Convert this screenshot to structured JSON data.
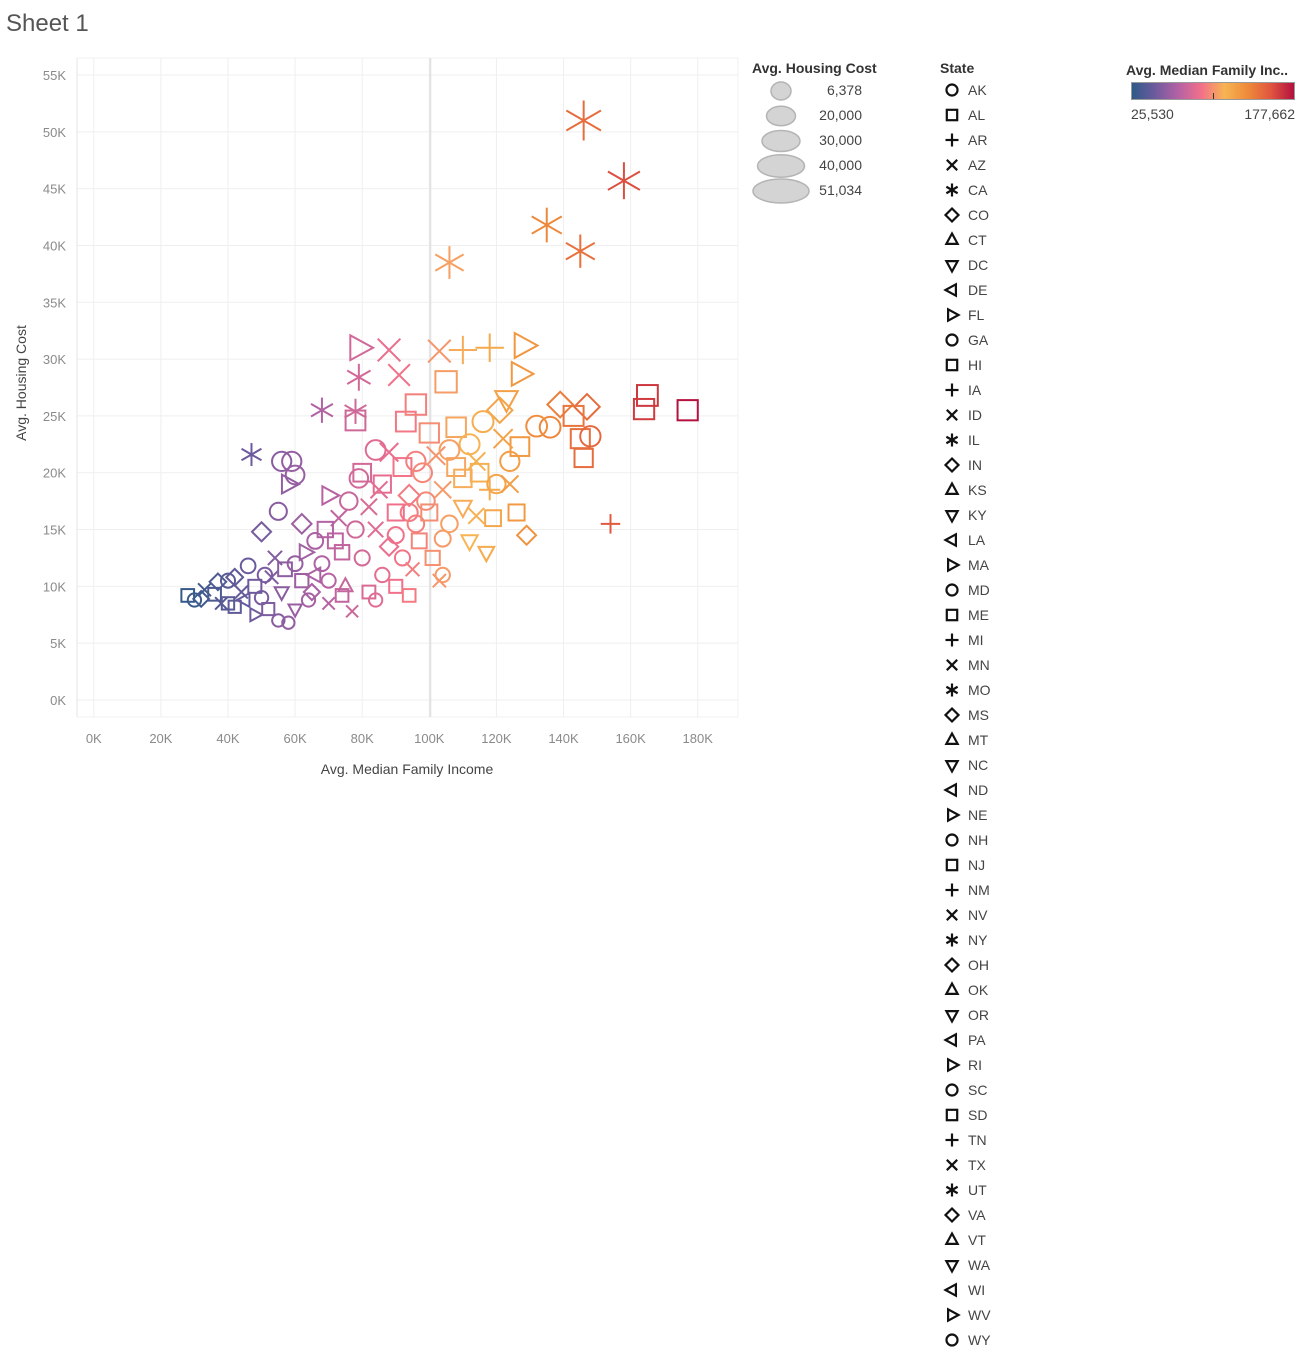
{
  "sheet": {
    "title": "Sheet 1"
  },
  "chart_data": {
    "type": "scatter",
    "xlabel": "Avg. Median Family Income",
    "ylabel": "Avg. Housing Cost",
    "xlim": [
      -5000,
      192000
    ],
    "ylim": [
      -1500,
      56500
    ],
    "x_ticks": [
      0,
      20000,
      40000,
      60000,
      80000,
      100000,
      120000,
      140000,
      160000,
      180000
    ],
    "x_tick_labels": [
      "0K",
      "20K",
      "40K",
      "60K",
      "80K",
      "100K",
      "120K",
      "140K",
      "160K",
      "180K"
    ],
    "y_ticks": [
      0,
      5000,
      10000,
      15000,
      20000,
      25000,
      30000,
      35000,
      40000,
      45000,
      50000,
      55000
    ],
    "y_tick_labels": [
      "0K",
      "5K",
      "10K",
      "15K",
      "20K",
      "25K",
      "30K",
      "35K",
      "40K",
      "45K",
      "50K",
      "55K"
    ],
    "grid": true,
    "color_scale": {
      "title": "Avg. Median Family Inc..",
      "min_label": "25,530",
      "max_label": "177,662",
      "min": 25530,
      "max": 177662,
      "stops": [
        "#2e5a87",
        "#6e5a9e",
        "#b462a4",
        "#f2708a",
        "#f7b453",
        "#ee8a3a",
        "#e0553f",
        "#b3103f"
      ]
    },
    "size_legend": {
      "title": "Avg. Housing Cost",
      "values": [
        "6,378",
        "20,000",
        "30,000",
        "40,000",
        "51,034"
      ]
    },
    "shape_legend": {
      "title": "State",
      "items": [
        {
          "state": "AK",
          "shape": "circle"
        },
        {
          "state": "AL",
          "shape": "square"
        },
        {
          "state": "AR",
          "shape": "plus"
        },
        {
          "state": "AZ",
          "shape": "cross"
        },
        {
          "state": "CA",
          "shape": "asterisk"
        },
        {
          "state": "CO",
          "shape": "diamond"
        },
        {
          "state": "CT",
          "shape": "triangle-up"
        },
        {
          "state": "DC",
          "shape": "triangle-down"
        },
        {
          "state": "DE",
          "shape": "triangle-left"
        },
        {
          "state": "FL",
          "shape": "triangle-right"
        },
        {
          "state": "GA",
          "shape": "circle"
        },
        {
          "state": "HI",
          "shape": "square"
        },
        {
          "state": "IA",
          "shape": "plus"
        },
        {
          "state": "ID",
          "shape": "cross"
        },
        {
          "state": "IL",
          "shape": "asterisk"
        },
        {
          "state": "IN",
          "shape": "diamond"
        },
        {
          "state": "KS",
          "shape": "triangle-up"
        },
        {
          "state": "KY",
          "shape": "triangle-down"
        },
        {
          "state": "LA",
          "shape": "triangle-left"
        },
        {
          "state": "MA",
          "shape": "triangle-right"
        },
        {
          "state": "MD",
          "shape": "circle"
        },
        {
          "state": "ME",
          "shape": "square"
        },
        {
          "state": "MI",
          "shape": "plus"
        },
        {
          "state": "MN",
          "shape": "cross"
        },
        {
          "state": "MO",
          "shape": "asterisk"
        },
        {
          "state": "MS",
          "shape": "diamond"
        },
        {
          "state": "MT",
          "shape": "triangle-up"
        },
        {
          "state": "NC",
          "shape": "triangle-down"
        },
        {
          "state": "ND",
          "shape": "triangle-left"
        },
        {
          "state": "NE",
          "shape": "triangle-right"
        },
        {
          "state": "NH",
          "shape": "circle"
        },
        {
          "state": "NJ",
          "shape": "square"
        },
        {
          "state": "NM",
          "shape": "plus"
        },
        {
          "state": "NV",
          "shape": "cross"
        },
        {
          "state": "NY",
          "shape": "asterisk"
        },
        {
          "state": "OH",
          "shape": "diamond"
        },
        {
          "state": "OK",
          "shape": "triangle-up"
        },
        {
          "state": "OR",
          "shape": "triangle-down"
        },
        {
          "state": "PA",
          "shape": "triangle-left"
        },
        {
          "state": "RI",
          "shape": "triangle-right"
        },
        {
          "state": "SC",
          "shape": "circle"
        },
        {
          "state": "SD",
          "shape": "square"
        },
        {
          "state": "TN",
          "shape": "plus"
        },
        {
          "state": "TX",
          "shape": "cross"
        },
        {
          "state": "UT",
          "shape": "asterisk"
        },
        {
          "state": "VA",
          "shape": "diamond"
        },
        {
          "state": "VT",
          "shape": "triangle-up"
        },
        {
          "state": "WA",
          "shape": "triangle-down"
        },
        {
          "state": "WI",
          "shape": "triangle-left"
        },
        {
          "state": "WV",
          "shape": "triangle-right"
        },
        {
          "state": "WY",
          "shape": "circle"
        }
      ]
    },
    "points": [
      {
        "x": 146000,
        "y": 51000,
        "state": "CA"
      },
      {
        "x": 158000,
        "y": 45700,
        "state": "CA"
      },
      {
        "x": 135000,
        "y": 41800,
        "state": "CA"
      },
      {
        "x": 145000,
        "y": 39500,
        "state": "CA"
      },
      {
        "x": 106000,
        "y": 38500,
        "state": "CA"
      },
      {
        "x": 177000,
        "y": 25500,
        "state": "NJ"
      },
      {
        "x": 165000,
        "y": 26800,
        "state": "NJ"
      },
      {
        "x": 164000,
        "y": 25600,
        "state": "NJ"
      },
      {
        "x": 154000,
        "y": 15500,
        "state": "AR"
      },
      {
        "x": 128000,
        "y": 31200,
        "state": "FL"
      },
      {
        "x": 118000,
        "y": 31000,
        "state": "AR"
      },
      {
        "x": 110000,
        "y": 30800,
        "state": "AR"
      },
      {
        "x": 103000,
        "y": 30700,
        "state": "AZ"
      },
      {
        "x": 105000,
        "y": 28000,
        "state": "AL"
      },
      {
        "x": 88000,
        "y": 30800,
        "state": "AZ"
      },
      {
        "x": 79000,
        "y": 31000,
        "state": "FL"
      },
      {
        "x": 79000,
        "y": 28400,
        "state": "CA"
      },
      {
        "x": 91000,
        "y": 28600,
        "state": "AZ"
      },
      {
        "x": 68000,
        "y": 25500,
        "state": "CA"
      },
      {
        "x": 78000,
        "y": 25400,
        "state": "CA"
      },
      {
        "x": 78000,
        "y": 24600,
        "state": "AL"
      },
      {
        "x": 93000,
        "y": 24500,
        "state": "AL"
      },
      {
        "x": 96000,
        "y": 26000,
        "state": "AL"
      },
      {
        "x": 108000,
        "y": 24000,
        "state": "AL"
      },
      {
        "x": 123000,
        "y": 26500,
        "state": "DC"
      },
      {
        "x": 127000,
        "y": 28700,
        "state": "FL"
      },
      {
        "x": 121000,
        "y": 25500,
        "state": "CO"
      },
      {
        "x": 139000,
        "y": 26000,
        "state": "CO"
      },
      {
        "x": 147000,
        "y": 25800,
        "state": "CO"
      },
      {
        "x": 143000,
        "y": 25000,
        "state": "AL"
      },
      {
        "x": 136000,
        "y": 24000,
        "state": "AK"
      },
      {
        "x": 145000,
        "y": 23000,
        "state": "AL"
      },
      {
        "x": 148000,
        "y": 23200,
        "state": "AK"
      },
      {
        "x": 146000,
        "y": 21300,
        "state": "AL"
      },
      {
        "x": 132000,
        "y": 24100,
        "state": "AK"
      },
      {
        "x": 127000,
        "y": 22300,
        "state": "AL"
      },
      {
        "x": 124000,
        "y": 21000,
        "state": "AK"
      },
      {
        "x": 126000,
        "y": 16500,
        "state": "AL"
      },
      {
        "x": 129000,
        "y": 14500,
        "state": "CO"
      },
      {
        "x": 118000,
        "y": 18500,
        "state": "AR"
      },
      {
        "x": 114000,
        "y": 16200,
        "state": "AZ"
      },
      {
        "x": 112000,
        "y": 14000,
        "state": "DC"
      },
      {
        "x": 104000,
        "y": 14200,
        "state": "AK"
      },
      {
        "x": 103000,
        "y": 10500,
        "state": "AZ"
      },
      {
        "x": 94000,
        "y": 16500,
        "state": "AK"
      },
      {
        "x": 90000,
        "y": 16500,
        "state": "AL"
      },
      {
        "x": 85000,
        "y": 18500,
        "state": "AZ"
      },
      {
        "x": 79000,
        "y": 19500,
        "state": "AK"
      },
      {
        "x": 70000,
        "y": 18000,
        "state": "FL"
      },
      {
        "x": 59000,
        "y": 21000,
        "state": "AK"
      },
      {
        "x": 56000,
        "y": 21000,
        "state": "AK"
      },
      {
        "x": 60000,
        "y": 19800,
        "state": "AK"
      },
      {
        "x": 58000,
        "y": 19000,
        "state": "FL"
      },
      {
        "x": 47000,
        "y": 21600,
        "state": "IL"
      },
      {
        "x": 55000,
        "y": 16600,
        "state": "AK"
      },
      {
        "x": 50000,
        "y": 14800,
        "state": "CO"
      },
      {
        "x": 40000,
        "y": 10500,
        "state": "AK"
      },
      {
        "x": 37000,
        "y": 10400,
        "state": "CO"
      },
      {
        "x": 28000,
        "y": 9200,
        "state": "AL"
      },
      {
        "x": 30000,
        "y": 8800,
        "state": "AK"
      },
      {
        "x": 33000,
        "y": 9700,
        "state": "AZ"
      },
      {
        "x": 32000,
        "y": 8900,
        "state": "CO"
      },
      {
        "x": 36000,
        "y": 9300,
        "state": "AL"
      },
      {
        "x": 38000,
        "y": 8500,
        "state": "AZ"
      },
      {
        "x": 42000,
        "y": 8200,
        "state": "AL"
      },
      {
        "x": 45000,
        "y": 8800,
        "state": "DE"
      },
      {
        "x": 48000,
        "y": 7500,
        "state": "FL"
      },
      {
        "x": 50000,
        "y": 9000,
        "state": "AK"
      },
      {
        "x": 53000,
        "y": 10800,
        "state": "AZ"
      },
      {
        "x": 55000,
        "y": 7000,
        "state": "AK"
      },
      {
        "x": 58000,
        "y": 6800,
        "state": "AK"
      },
      {
        "x": 60000,
        "y": 8000,
        "state": "DC"
      },
      {
        "x": 62000,
        "y": 10500,
        "state": "AL"
      },
      {
        "x": 65000,
        "y": 9500,
        "state": "CO"
      },
      {
        "x": 68000,
        "y": 12000,
        "state": "AK"
      },
      {
        "x": 70000,
        "y": 8500,
        "state": "AZ"
      },
      {
        "x": 72000,
        "y": 14000,
        "state": "AL"
      },
      {
        "x": 75000,
        "y": 10000,
        "state": "CT"
      },
      {
        "x": 77000,
        "y": 7800,
        "state": "AZ"
      },
      {
        "x": 80000,
        "y": 12500,
        "state": "AK"
      },
      {
        "x": 82000,
        "y": 9500,
        "state": "AL"
      },
      {
        "x": 84000,
        "y": 15000,
        "state": "AZ"
      },
      {
        "x": 86000,
        "y": 11000,
        "state": "AK"
      },
      {
        "x": 88000,
        "y": 13500,
        "state": "CO"
      },
      {
        "x": 90000,
        "y": 10000,
        "state": "AL"
      },
      {
        "x": 92000,
        "y": 12500,
        "state": "AK"
      },
      {
        "x": 95000,
        "y": 11500,
        "state": "AZ"
      },
      {
        "x": 97000,
        "y": 14000,
        "state": "AL"
      },
      {
        "x": 99000,
        "y": 17500,
        "state": "AK"
      },
      {
        "x": 101000,
        "y": 12500,
        "state": "AL"
      },
      {
        "x": 104000,
        "y": 18500,
        "state": "AZ"
      },
      {
        "x": 106000,
        "y": 15500,
        "state": "AK"
      },
      {
        "x": 108000,
        "y": 20500,
        "state": "AL"
      },
      {
        "x": 110000,
        "y": 17000,
        "state": "DC"
      },
      {
        "x": 112000,
        "y": 22500,
        "state": "AK"
      },
      {
        "x": 115000,
        "y": 20000,
        "state": "AL"
      },
      {
        "x": 117000,
        "y": 13000,
        "state": "DC"
      },
      {
        "x": 120000,
        "y": 19000,
        "state": "AK"
      },
      {
        "x": 122000,
        "y": 23000,
        "state": "AZ"
      },
      {
        "x": 100000,
        "y": 23500,
        "state": "AL"
      },
      {
        "x": 96000,
        "y": 21000,
        "state": "AK"
      },
      {
        "x": 92000,
        "y": 20500,
        "state": "AL"
      },
      {
        "x": 88000,
        "y": 21800,
        "state": "AZ"
      },
      {
        "x": 84000,
        "y": 22000,
        "state": "AK"
      },
      {
        "x": 80000,
        "y": 20000,
        "state": "AL"
      },
      {
        "x": 76000,
        "y": 17500,
        "state": "AK"
      },
      {
        "x": 73000,
        "y": 16000,
        "state": "AZ"
      },
      {
        "x": 69000,
        "y": 15000,
        "state": "AL"
      },
      {
        "x": 66000,
        "y": 14000,
        "state": "AK"
      },
      {
        "x": 63000,
        "y": 13000,
        "state": "FL"
      },
      {
        "x": 60000,
        "y": 12000,
        "state": "AK"
      },
      {
        "x": 57000,
        "y": 11500,
        "state": "AL"
      },
      {
        "x": 54000,
        "y": 12500,
        "state": "AZ"
      },
      {
        "x": 51000,
        "y": 11000,
        "state": "AK"
      },
      {
        "x": 48000,
        "y": 10000,
        "state": "AL"
      },
      {
        "x": 46000,
        "y": 11800,
        "state": "AK"
      },
      {
        "x": 44000,
        "y": 9500,
        "state": "AZ"
      },
      {
        "x": 42000,
        "y": 10800,
        "state": "CO"
      },
      {
        "x": 40000,
        "y": 8500,
        "state": "AL"
      },
      {
        "x": 62000,
        "y": 15500,
        "state": "CO"
      },
      {
        "x": 66000,
        "y": 11000,
        "state": "DE"
      },
      {
        "x": 74000,
        "y": 13000,
        "state": "AL"
      },
      {
        "x": 78000,
        "y": 15000,
        "state": "AK"
      },
      {
        "x": 82000,
        "y": 17000,
        "state": "AZ"
      },
      {
        "x": 86000,
        "y": 19000,
        "state": "AL"
      },
      {
        "x": 90000,
        "y": 14500,
        "state": "AK"
      },
      {
        "x": 94000,
        "y": 18000,
        "state": "CO"
      },
      {
        "x": 98000,
        "y": 20000,
        "state": "AK"
      },
      {
        "x": 102000,
        "y": 21500,
        "state": "AZ"
      },
      {
        "x": 106000,
        "y": 22000,
        "state": "AK"
      },
      {
        "x": 110000,
        "y": 19500,
        "state": "AL"
      },
      {
        "x": 114000,
        "y": 21000,
        "state": "AZ"
      },
      {
        "x": 116000,
        "y": 24500,
        "state": "AK"
      },
      {
        "x": 119000,
        "y": 16000,
        "state": "AL"
      },
      {
        "x": 124000,
        "y": 19000,
        "state": "AZ"
      },
      {
        "x": 70000,
        "y": 10500,
        "state": "AK"
      },
      {
        "x": 56000,
        "y": 9500,
        "state": "DC"
      },
      {
        "x": 52000,
        "y": 8000,
        "state": "AL"
      },
      {
        "x": 64000,
        "y": 8800,
        "state": "AK"
      },
      {
        "x": 74000,
        "y": 9200,
        "state": "AL"
      },
      {
        "x": 84000,
        "y": 8800,
        "state": "AK"
      },
      {
        "x": 94000,
        "y": 9200,
        "state": "AL"
      },
      {
        "x": 104000,
        "y": 11000,
        "state": "AK"
      },
      {
        "x": 96000,
        "y": 15500,
        "state": "AK"
      },
      {
        "x": 100000,
        "y": 16500,
        "state": "AL"
      }
    ]
  }
}
